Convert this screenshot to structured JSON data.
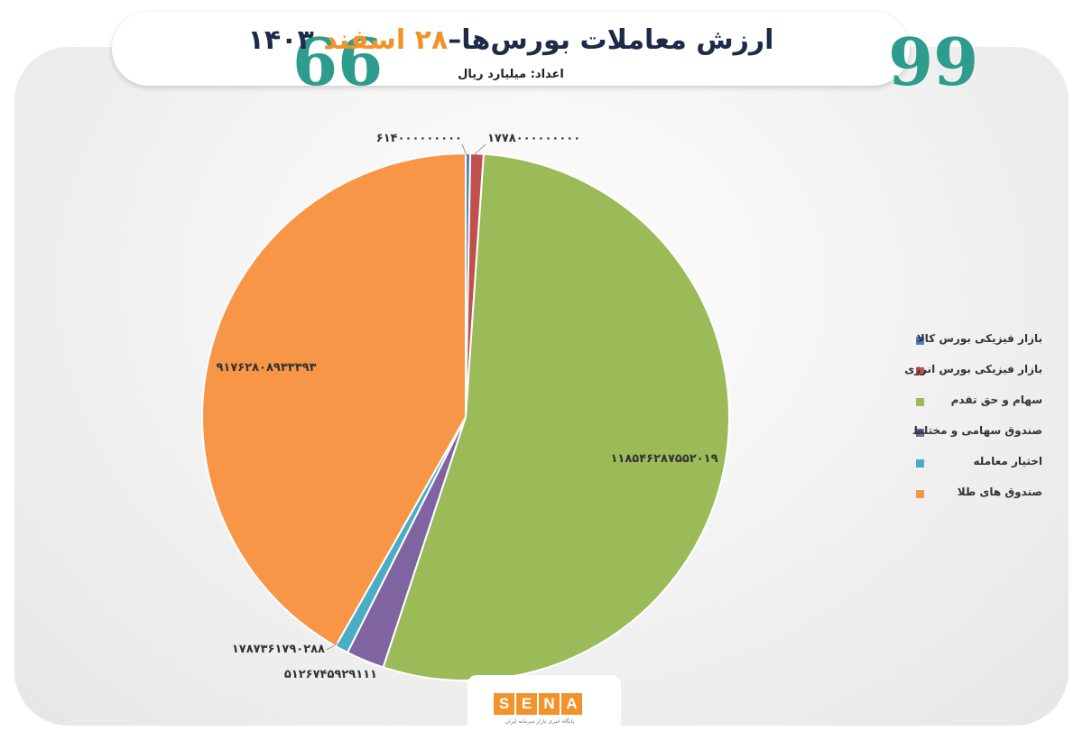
{
  "header": {
    "title_prefix": "ارزش معاملات بورس‌ها–",
    "title_date": "۲۸ اسفند",
    "title_year": "۱۴۰۳",
    "quote_open": "99",
    "quote_close": "66",
    "subtitle": "اعداد: میلیارد ریال"
  },
  "chart_data": {
    "type": "pie",
    "title": "ارزش معاملات بورس‌ها–۲۸ اسفند ۱۴۰۳",
    "subtitle": "اعداد: میلیارد ریال",
    "legend_position": "right",
    "start_angle": 0,
    "direction": "clockwise",
    "series": [
      {
        "name": "بازار فیزیکی بورس کالا",
        "value": 614000000000,
        "label": "۶۱۴۰۰۰۰۰۰۰۰۰",
        "color": "#4f81bd"
      },
      {
        "name": "بازار فیزیکی بورس انرژی",
        "value": 1778000000000,
        "label": "۱۷۷۸۰۰۰۰۰۰۰۰۰",
        "color": "#c0504d"
      },
      {
        "name": "سهام و حق تقدم",
        "value": 118546287552019,
        "label": "۱۱۸۵۴۶۲۸۷۵۵۲۰۱۹",
        "color": "#9bbb59"
      },
      {
        "name": "صندوق سهامی و مختلط",
        "value": 5126745929111,
        "label": "۵۱۲۶۷۴۵۹۲۹۱۱۱",
        "color": "#8064a2"
      },
      {
        "name": "اختیار معامله",
        "value": 1787361790288,
        "label": "۱۷۸۷۳۶۱۷۹۰۲۸۸",
        "color": "#4bacc6"
      },
      {
        "name": "صندوق های طلا",
        "value": 91762808933393,
        "label": "۹۱۷۶۲۸۰۸۹۳۳۳۹۳",
        "color": "#f79646"
      }
    ]
  },
  "logo": {
    "letters": [
      "S",
      "E",
      "N",
      "A"
    ],
    "caption": "پایگاه خبری بازار سرمایه ایران"
  }
}
